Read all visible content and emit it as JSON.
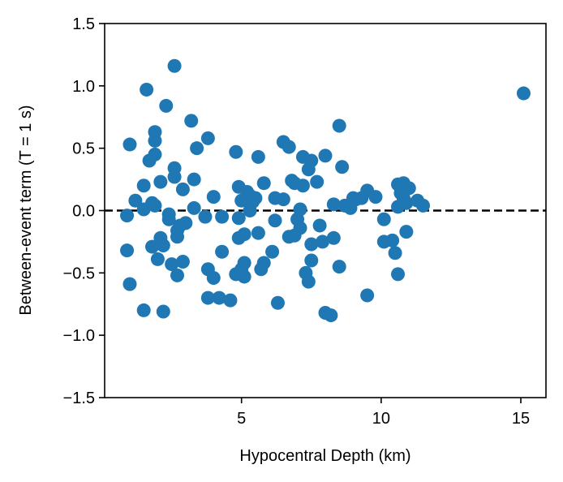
{
  "chart_data": {
    "type": "scatter",
    "title": "",
    "xlabel": "Hypocentral Depth (km)",
    "ylabel": "Between-event term (T = 1 s)",
    "xlim": [
      0.1,
      15.9
    ],
    "ylim": [
      -1.5,
      1.5
    ],
    "xticks": [
      5,
      10,
      15
    ],
    "yticks": [
      -1.5,
      -1.0,
      -0.5,
      0.0,
      0.5,
      1.0,
      1.5
    ],
    "xtick_labels": [
      "5",
      "10",
      "15"
    ],
    "ytick_labels": [
      "−1.5",
      "−1.0",
      "−0.5",
      "0.0",
      "0.5",
      "1.0",
      "1.5"
    ],
    "reference_line": {
      "y": 0.0,
      "style": "dashed",
      "color": "#000000"
    },
    "grid": false,
    "marker_color": "#1f77b4",
    "points": [
      [
        0.9,
        -0.04
      ],
      [
        1.0,
        0.53
      ],
      [
        0.9,
        -0.32
      ],
      [
        1.0,
        -0.59
      ],
      [
        1.2,
        0.08
      ],
      [
        1.5,
        0.01
      ],
      [
        1.5,
        0.2
      ],
      [
        1.6,
        0.97
      ],
      [
        1.7,
        0.4
      ],
      [
        1.8,
        0.06
      ],
      [
        1.8,
        -0.29
      ],
      [
        1.9,
        0.63
      ],
      [
        1.9,
        0.56
      ],
      [
        1.9,
        0.45
      ],
      [
        1.9,
        0.04
      ],
      [
        2.0,
        -0.39
      ],
      [
        2.1,
        -0.22
      ],
      [
        2.1,
        0.23
      ],
      [
        2.2,
        -0.28
      ],
      [
        2.2,
        -0.81
      ],
      [
        1.5,
        -0.8
      ],
      [
        2.3,
        0.84
      ],
      [
        2.4,
        -0.03
      ],
      [
        2.4,
        -0.07
      ],
      [
        2.5,
        -0.43
      ],
      [
        2.6,
        1.16
      ],
      [
        2.6,
        0.34
      ],
      [
        2.6,
        0.27
      ],
      [
        2.7,
        -0.52
      ],
      [
        2.7,
        -0.16
      ],
      [
        2.7,
        -0.21
      ],
      [
        2.8,
        -0.12
      ],
      [
        2.9,
        -0.41
      ],
      [
        2.9,
        0.17
      ],
      [
        3.0,
        -0.1
      ],
      [
        3.2,
        0.72
      ],
      [
        3.3,
        0.02
      ],
      [
        3.3,
        0.25
      ],
      [
        3.4,
        0.5
      ],
      [
        3.7,
        -0.05
      ],
      [
        3.8,
        -0.47
      ],
      [
        3.8,
        0.58
      ],
      [
        3.8,
        -0.7
      ],
      [
        4.0,
        0.11
      ],
      [
        4.0,
        -0.54
      ],
      [
        4.2,
        -0.7
      ],
      [
        4.3,
        -0.05
      ],
      [
        4.3,
        -0.33
      ],
      [
        4.6,
        -0.72
      ],
      [
        4.8,
        0.47
      ],
      [
        4.8,
        -0.51
      ],
      [
        4.9,
        0.19
      ],
      [
        4.9,
        -0.06
      ],
      [
        4.9,
        -0.22
      ],
      [
        5.0,
        -0.47
      ],
      [
        5.0,
        0.08
      ],
      [
        5.1,
        -0.42
      ],
      [
        5.1,
        -0.19
      ],
      [
        5.1,
        -0.53
      ],
      [
        5.2,
        0.15
      ],
      [
        5.3,
        0.12
      ],
      [
        5.3,
        0.0
      ],
      [
        5.4,
        0.07
      ],
      [
        5.5,
        0.1
      ],
      [
        5.6,
        -0.18
      ],
      [
        5.6,
        0.43
      ],
      [
        5.7,
        -0.47
      ],
      [
        5.8,
        -0.42
      ],
      [
        5.8,
        0.22
      ],
      [
        6.1,
        -0.33
      ],
      [
        6.2,
        0.1
      ],
      [
        6.2,
        -0.08
      ],
      [
        6.3,
        -0.74
      ],
      [
        6.5,
        0.55
      ],
      [
        6.5,
        0.09
      ],
      [
        6.7,
        0.51
      ],
      [
        6.7,
        -0.21
      ],
      [
        6.8,
        0.24
      ],
      [
        6.9,
        0.22
      ],
      [
        6.9,
        -0.2
      ],
      [
        7.0,
        -0.07
      ],
      [
        7.1,
        0.01
      ],
      [
        7.1,
        -0.14
      ],
      [
        7.2,
        0.43
      ],
      [
        7.2,
        0.2
      ],
      [
        7.3,
        -0.5
      ],
      [
        7.4,
        -0.57
      ],
      [
        7.4,
        0.33
      ],
      [
        7.5,
        -0.4
      ],
      [
        7.5,
        -0.27
      ],
      [
        7.5,
        0.4
      ],
      [
        7.7,
        0.23
      ],
      [
        7.8,
        -0.12
      ],
      [
        7.9,
        -0.25
      ],
      [
        8.0,
        0.44
      ],
      [
        8.0,
        -0.82
      ],
      [
        8.2,
        -0.84
      ],
      [
        8.3,
        -0.22
      ],
      [
        8.3,
        0.05
      ],
      [
        8.5,
        0.68
      ],
      [
        8.5,
        -0.45
      ],
      [
        8.6,
        0.35
      ],
      [
        8.7,
        0.04
      ],
      [
        8.9,
        0.02
      ],
      [
        9.0,
        0.1
      ],
      [
        9.1,
        0.09
      ],
      [
        9.3,
        0.1
      ],
      [
        9.5,
        0.16
      ],
      [
        9.5,
        -0.68
      ],
      [
        9.8,
        0.11
      ],
      [
        10.1,
        -0.07
      ],
      [
        10.1,
        -0.25
      ],
      [
        10.4,
        -0.24
      ],
      [
        10.5,
        -0.34
      ],
      [
        10.6,
        0.21
      ],
      [
        10.6,
        0.03
      ],
      [
        10.6,
        -0.51
      ],
      [
        10.7,
        0.14
      ],
      [
        10.8,
        0.22
      ],
      [
        10.8,
        0.1
      ],
      [
        10.9,
        0.06
      ],
      [
        10.9,
        -0.17
      ],
      [
        11.0,
        0.18
      ],
      [
        11.3,
        0.08
      ],
      [
        11.5,
        0.04
      ],
      [
        15.1,
        0.94
      ]
    ]
  }
}
